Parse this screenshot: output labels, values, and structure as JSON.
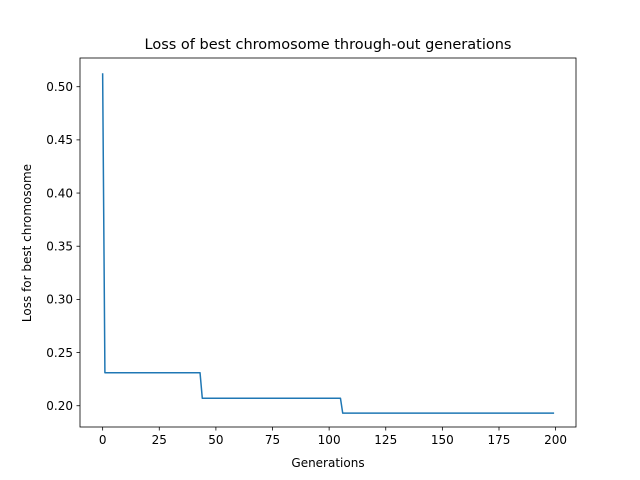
{
  "chart_data": {
    "type": "line",
    "title": "Loss of best chromosome through-out generations",
    "xlabel": "Generations",
    "ylabel": "Loss for best chromosome",
    "xlim": [
      -10,
      209
    ],
    "ylim": [
      0.18,
      0.527
    ],
    "x_ticks": [
      0,
      25,
      50,
      75,
      100,
      125,
      150,
      175,
      200
    ],
    "y_ticks": [
      0.2,
      0.25,
      0.3,
      0.35,
      0.4,
      0.45,
      0.5
    ],
    "x_tick_labels": [
      "0",
      "25",
      "50",
      "75",
      "100",
      "125",
      "150",
      "175",
      "200"
    ],
    "y_tick_labels": [
      "0.20",
      "0.25",
      "0.30",
      "0.35",
      "0.40",
      "0.45",
      "0.50"
    ],
    "grid": false,
    "color": "#1f77b4",
    "series": [
      {
        "x": [
          0,
          1,
          43,
          44,
          105,
          106,
          199
        ],
        "y": [
          0.512,
          0.231,
          0.231,
          0.207,
          0.207,
          0.193,
          0.193
        ]
      }
    ]
  }
}
